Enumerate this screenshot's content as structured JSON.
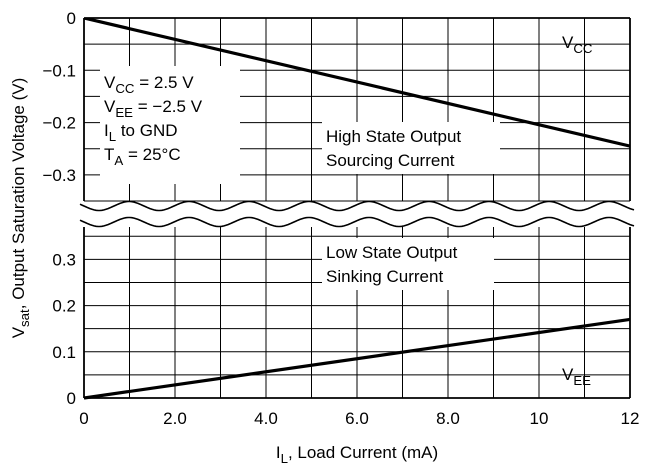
{
  "chart_data": {
    "type": "line",
    "ylabel": "V",
    "ylabel_sub": "sat",
    "ylabel_rest": ", Output Saturation Voltage (V)",
    "xlabel": "I",
    "xlabel_sub": "L",
    "xlabel_rest": ", Load Current (mA)",
    "xlim": [
      0,
      12
    ],
    "x_ticks": [
      0,
      2,
      4,
      6,
      8,
      10,
      12
    ],
    "x_tick_labels": [
      "0",
      "2.0",
      "4.0",
      "6.0",
      "8.0",
      "10",
      "12"
    ],
    "x_grid": [
      0,
      1,
      2,
      3,
      4,
      5,
      6,
      7,
      8,
      9,
      10,
      11,
      12
    ],
    "grid": true,
    "axis_break": true,
    "panels": [
      {
        "id": "upper",
        "ylim": [
          -0.35,
          0
        ],
        "y_ticks": [
          0,
          -0.1,
          -0.2,
          -0.3
        ],
        "y_tick_labels": [
          "0",
          "−0.1",
          "−0.2",
          "−0.3"
        ],
        "y_grid": [
          0,
          -0.05,
          -0.1,
          -0.15,
          -0.2,
          -0.25,
          -0.3,
          -0.35
        ],
        "series": [
          {
            "x": [
              0,
              12
            ],
            "y": [
              0,
              -0.245
            ]
          }
        ],
        "rail_label": {
          "main": "V",
          "sub": "CC"
        }
      },
      {
        "id": "lower",
        "ylim": [
          0,
          0.37
        ],
        "y_ticks": [
          0,
          0.1,
          0.2,
          0.3
        ],
        "y_tick_labels": [
          "0",
          "0.1",
          "0.2",
          "0.3"
        ],
        "y_grid": [
          0,
          0.05,
          0.1,
          0.15,
          0.2,
          0.25,
          0.3,
          0.35
        ],
        "series": [
          {
            "x": [
              0,
              12
            ],
            "y": [
              0,
              0.17
            ]
          }
        ],
        "rail_label": {
          "main": "V",
          "sub": "EE"
        }
      }
    ],
    "conditions": [
      {
        "main": "V",
        "sub": "CC",
        "rest": " = 2.5 V"
      },
      {
        "main": "V",
        "sub": "EE",
        "rest": " = −2.5 V"
      },
      {
        "main": "I",
        "sub": "L",
        "rest": " to GND"
      },
      {
        "main": "T",
        "sub": "A",
        "rest": " = 25°C"
      }
    ],
    "annotations": {
      "high_state": [
        "High State Output",
        "Sourcing Current"
      ],
      "low_state": [
        "Low State Output",
        "Sinking Current"
      ]
    }
  }
}
